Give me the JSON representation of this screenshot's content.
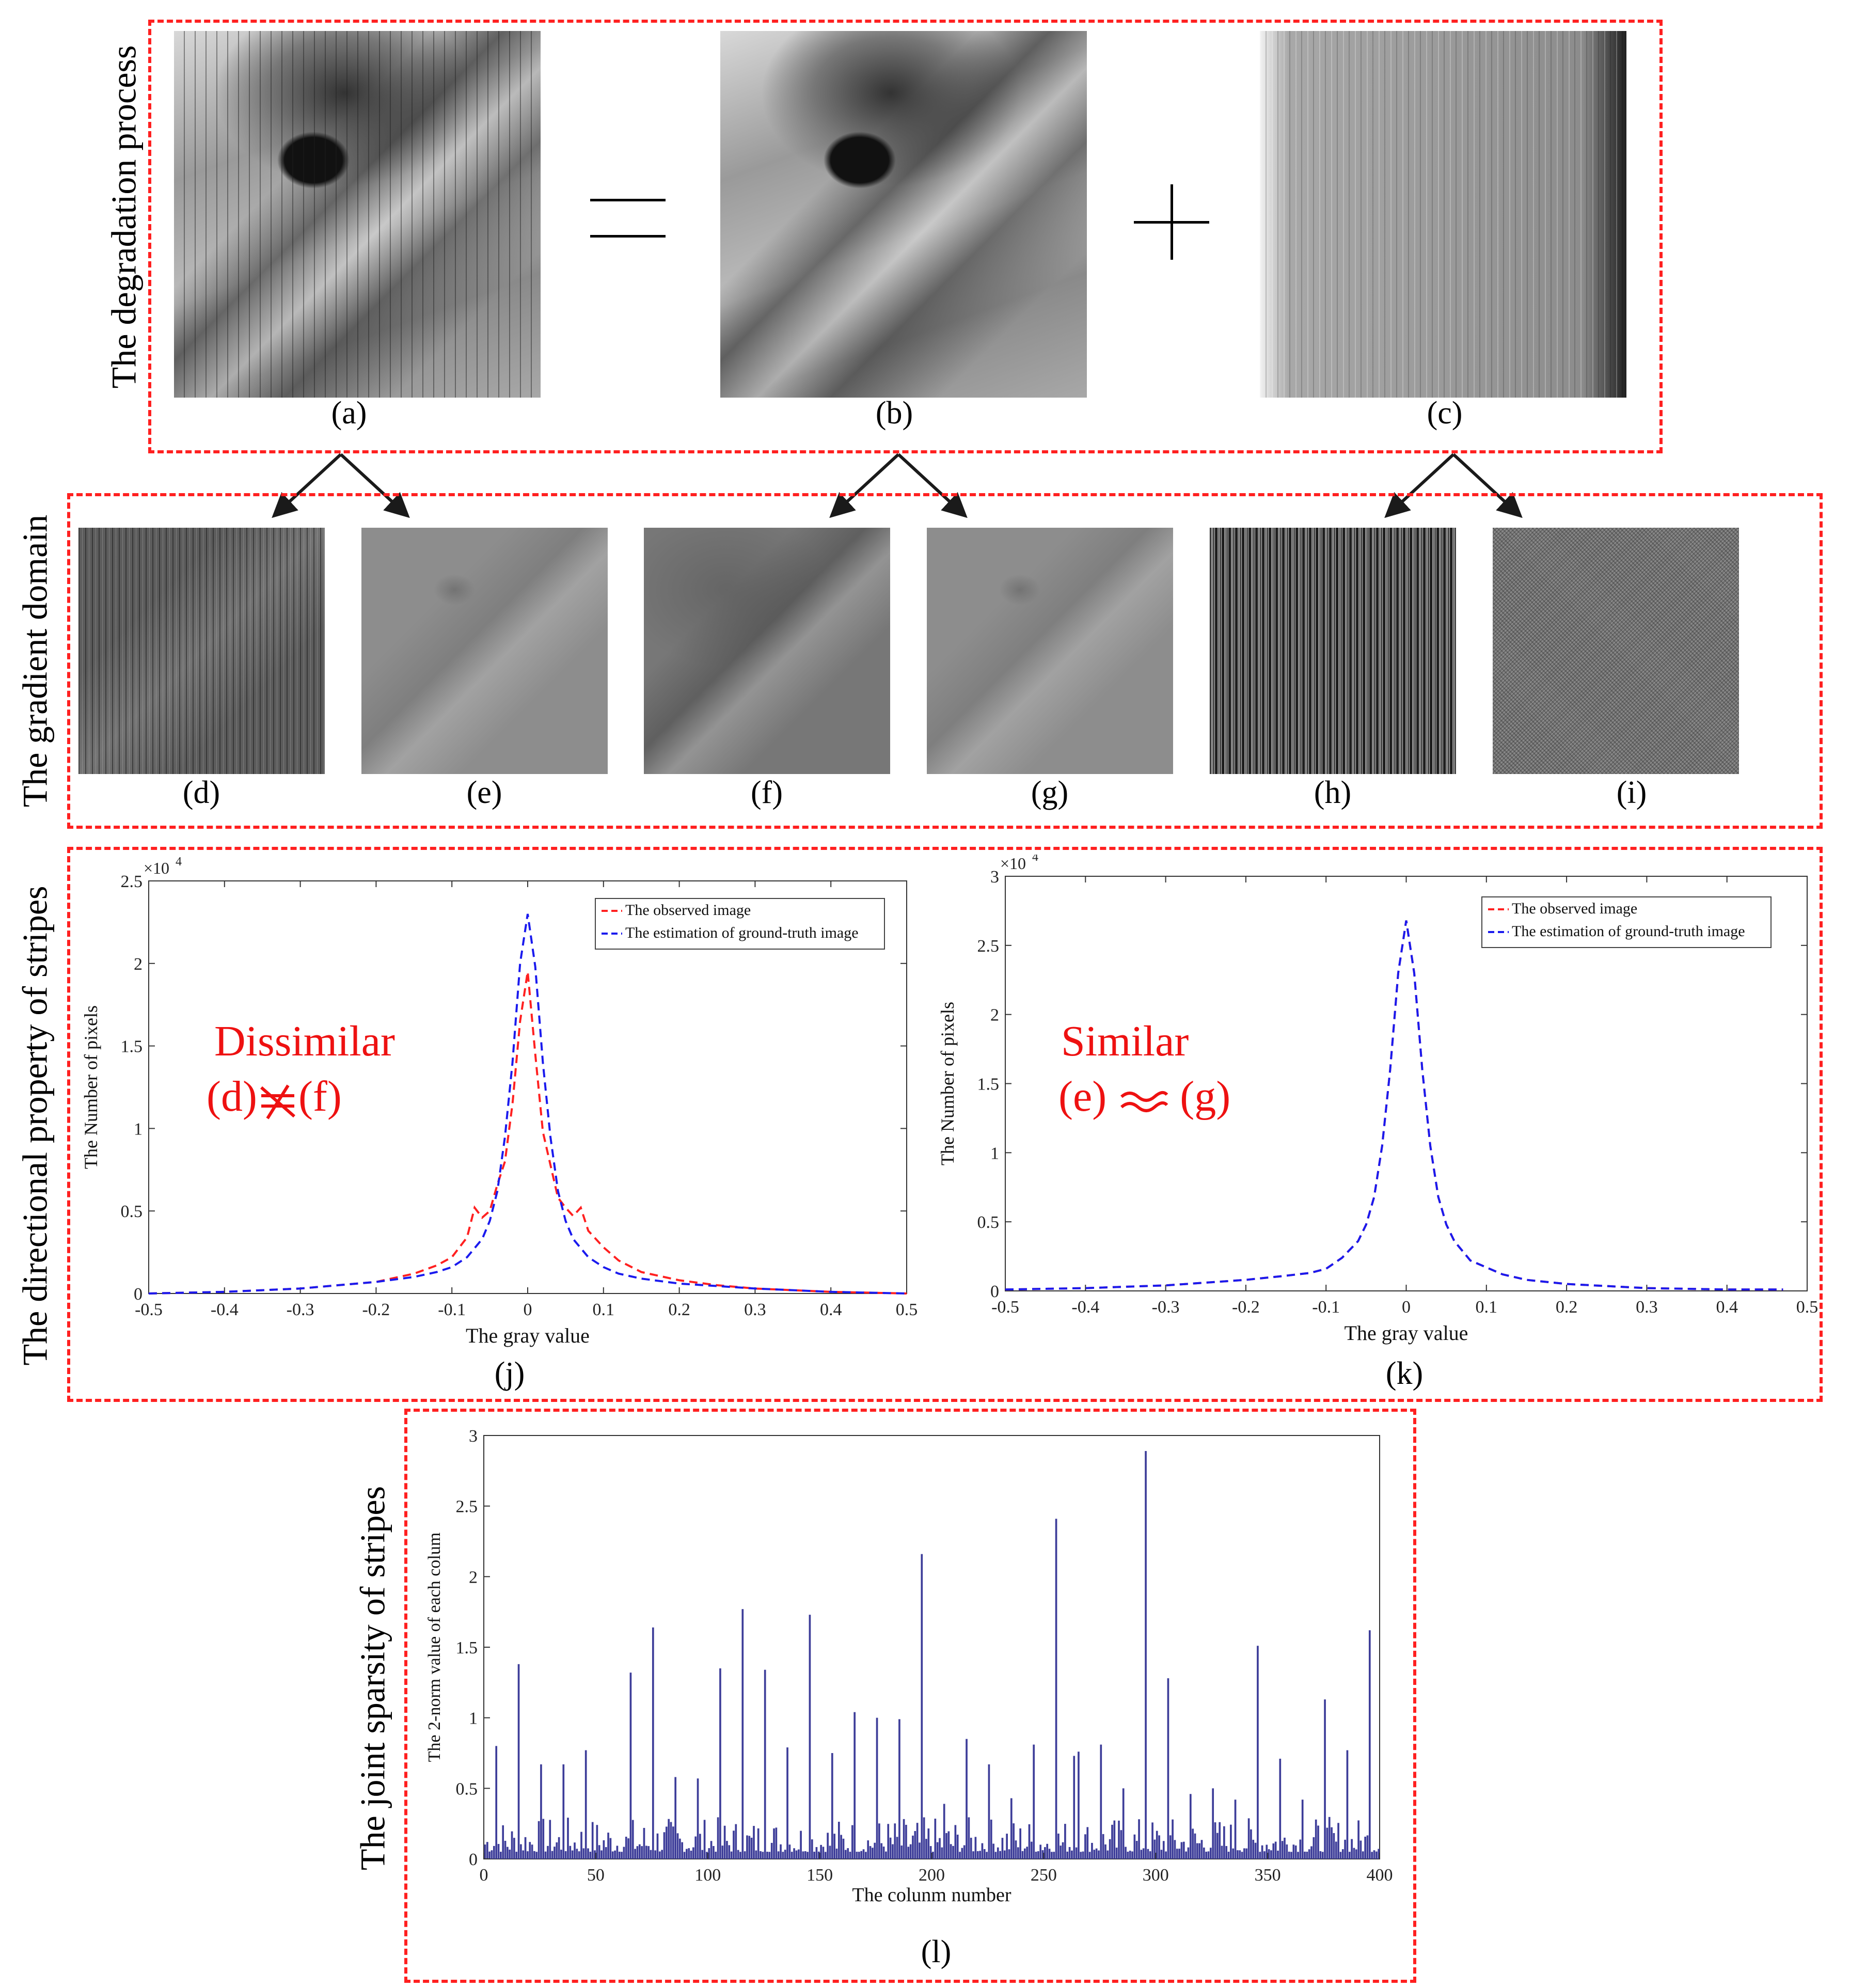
{
  "sections": {
    "degradation": "The degradation process",
    "gradient": "The gradient  domain",
    "directional": "The directional property of stripes",
    "sparsity": "The joint sparsity of stripes"
  },
  "captions": {
    "a": "(a)",
    "b": "(b)",
    "c": "(c)",
    "d": "(d)",
    "e": "(e)",
    "f": "(f)",
    "g": "(g)",
    "h": "(h)",
    "i": "(i)",
    "j": "(j)",
    "k": "(k)",
    "l": "(l)"
  },
  "annotations": {
    "j_word": "Dissimilar",
    "j_left": "(d)",
    "j_right": "(f)",
    "k_word": "Similar",
    "k_left": "(e)",
    "k_right": "(g)"
  },
  "colors": {
    "dash_border": "#ff2020",
    "observed": "#ff2020",
    "estimated": "#1a1aee",
    "bars": "#3d3d99",
    "annotation": "#ee1111"
  },
  "chart_data": [
    {
      "id": "j",
      "type": "line",
      "xlabel": "The gray value",
      "ylabel": "The Number of pixels",
      "y_exponent": "×10",
      "y_exponent_power": "4",
      "xlim": [
        -0.5,
        0.5
      ],
      "ylim": [
        0,
        2.5
      ],
      "xticks": [
        "-0.5",
        "-0.4",
        "-0.3",
        "-0.2",
        "-0.1",
        "0",
        "0.1",
        "0.2",
        "0.3",
        "0.4",
        "0.5"
      ],
      "yticks": [
        "0",
        "0.5",
        "1",
        "1.5",
        "2",
        "2.5"
      ],
      "legend_position": "top-right",
      "series": [
        {
          "name": "The observed image",
          "style": "dashed",
          "x": [
            -0.5,
            -0.4,
            -0.3,
            -0.25,
            -0.2,
            -0.15,
            -0.12,
            -0.1,
            -0.08,
            -0.07,
            -0.06,
            -0.05,
            -0.04,
            -0.03,
            -0.02,
            -0.01,
            0,
            0.01,
            0.02,
            0.03,
            0.04,
            0.05,
            0.06,
            0.07,
            0.08,
            0.1,
            0.12,
            0.15,
            0.2,
            0.25,
            0.3,
            0.4,
            0.5
          ],
          "y": [
            0,
            0.01,
            0.03,
            0.05,
            0.07,
            0.12,
            0.17,
            0.22,
            0.34,
            0.52,
            0.46,
            0.5,
            0.66,
            0.8,
            1.15,
            1.65,
            1.95,
            1.45,
            0.98,
            0.78,
            0.58,
            0.52,
            0.47,
            0.52,
            0.38,
            0.28,
            0.2,
            0.13,
            0.08,
            0.05,
            0.03,
            0.01,
            0
          ]
        },
        {
          "name": "The estimation of ground-truth image",
          "style": "dashed",
          "x": [
            -0.5,
            -0.4,
            -0.3,
            -0.2,
            -0.15,
            -0.12,
            -0.1,
            -0.08,
            -0.06,
            -0.05,
            -0.04,
            -0.03,
            -0.02,
            -0.01,
            0,
            0.01,
            0.02,
            0.03,
            0.04,
            0.05,
            0.06,
            0.08,
            0.1,
            0.12,
            0.15,
            0.2,
            0.3,
            0.4,
            0.5
          ],
          "y": [
            0,
            0.01,
            0.03,
            0.07,
            0.1,
            0.13,
            0.16,
            0.22,
            0.33,
            0.44,
            0.62,
            0.95,
            1.4,
            2.0,
            2.3,
            1.98,
            1.4,
            0.95,
            0.62,
            0.44,
            0.33,
            0.22,
            0.16,
            0.12,
            0.09,
            0.06,
            0.03,
            0.01,
            0
          ]
        }
      ]
    },
    {
      "id": "k",
      "type": "line",
      "xlabel": "The gray value",
      "ylabel": "The Number of pixels",
      "y_exponent": "×10",
      "y_exponent_power": "4",
      "xlim": [
        -0.5,
        0.5
      ],
      "ylim": [
        0,
        3
      ],
      "xticks": [
        "-0.5",
        "-0.4",
        "-0.3",
        "-0.2",
        "-0.1",
        "0",
        "0.1",
        "0.2",
        "0.3",
        "0.4",
        "0.5"
      ],
      "yticks": [
        "0",
        "0.5",
        "1",
        "1.5",
        "2",
        "2.5",
        "3"
      ],
      "legend_position": "top-right",
      "series": [
        {
          "name": "The observed image",
          "style": "dashed",
          "x": [
            -0.5,
            -0.4,
            -0.3,
            -0.2,
            -0.15,
            -0.12,
            -0.1,
            -0.08,
            -0.06,
            -0.05,
            -0.04,
            -0.03,
            -0.02,
            -0.01,
            0,
            0.01,
            0.02,
            0.03,
            0.04,
            0.05,
            0.06,
            0.08,
            0.1,
            0.12,
            0.15,
            0.2,
            0.3,
            0.4,
            0.47
          ],
          "y": [
            0.01,
            0.02,
            0.04,
            0.08,
            0.11,
            0.13,
            0.16,
            0.24,
            0.36,
            0.48,
            0.68,
            1.05,
            1.6,
            2.3,
            2.68,
            2.3,
            1.6,
            1.05,
            0.68,
            0.48,
            0.36,
            0.22,
            0.17,
            0.12,
            0.08,
            0.05,
            0.02,
            0.01,
            0.01
          ]
        },
        {
          "name": "The estimation of ground-truth image",
          "style": "dashed",
          "x": [
            -0.5,
            -0.4,
            -0.3,
            -0.2,
            -0.15,
            -0.12,
            -0.1,
            -0.08,
            -0.06,
            -0.05,
            -0.04,
            -0.03,
            -0.02,
            -0.01,
            0,
            0.01,
            0.02,
            0.03,
            0.04,
            0.05,
            0.06,
            0.08,
            0.1,
            0.12,
            0.15,
            0.2,
            0.3,
            0.4,
            0.47
          ],
          "y": [
            0.01,
            0.02,
            0.04,
            0.08,
            0.11,
            0.13,
            0.16,
            0.24,
            0.36,
            0.48,
            0.68,
            1.05,
            1.6,
            2.3,
            2.68,
            2.3,
            1.6,
            1.05,
            0.68,
            0.48,
            0.36,
            0.22,
            0.17,
            0.12,
            0.08,
            0.05,
            0.02,
            0.01,
            0.01
          ]
        }
      ]
    },
    {
      "id": "l",
      "type": "bar",
      "xlabel": "The colunm number",
      "ylabel": "The 2-norm value of each colum",
      "xlim": [
        0,
        400
      ],
      "ylim": [
        0,
        3
      ],
      "xticks": [
        "0",
        "50",
        "100",
        "150",
        "200",
        "250",
        "300",
        "350",
        "400"
      ],
      "yticks": [
        "0",
        "0.5",
        "1",
        "1.5",
        "2",
        "2.5",
        "3"
      ],
      "baseline": 0.05,
      "noise_max": 0.3,
      "peaks": [
        {
          "x": 6,
          "y": 0.8
        },
        {
          "x": 16,
          "y": 1.38
        },
        {
          "x": 26,
          "y": 0.67
        },
        {
          "x": 36,
          "y": 0.67
        },
        {
          "x": 46,
          "y": 0.77
        },
        {
          "x": 66,
          "y": 1.32
        },
        {
          "x": 76,
          "y": 1.64
        },
        {
          "x": 86,
          "y": 0.58
        },
        {
          "x": 96,
          "y": 0.57
        },
        {
          "x": 106,
          "y": 1.35
        },
        {
          "x": 116,
          "y": 1.77
        },
        {
          "x": 126,
          "y": 1.34
        },
        {
          "x": 136,
          "y": 0.79
        },
        {
          "x": 146,
          "y": 1.73
        },
        {
          "x": 156,
          "y": 0.75
        },
        {
          "x": 166,
          "y": 1.04
        },
        {
          "x": 176,
          "y": 1.0
        },
        {
          "x": 186,
          "y": 0.99
        },
        {
          "x": 196,
          "y": 2.16
        },
        {
          "x": 206,
          "y": 0.39
        },
        {
          "x": 216,
          "y": 0.85
        },
        {
          "x": 226,
          "y": 0.67
        },
        {
          "x": 236,
          "y": 0.43
        },
        {
          "x": 246,
          "y": 0.81
        },
        {
          "x": 256,
          "y": 2.41
        },
        {
          "x": 264,
          "y": 0.73
        },
        {
          "x": 266,
          "y": 0.76
        },
        {
          "x": 276,
          "y": 0.81
        },
        {
          "x": 286,
          "y": 0.5
        },
        {
          "x": 296,
          "y": 2.89
        },
        {
          "x": 306,
          "y": 1.28
        },
        {
          "x": 316,
          "y": 0.46
        },
        {
          "x": 326,
          "y": 0.5
        },
        {
          "x": 336,
          "y": 0.42
        },
        {
          "x": 346,
          "y": 1.51
        },
        {
          "x": 356,
          "y": 0.71
        },
        {
          "x": 366,
          "y": 0.42
        },
        {
          "x": 376,
          "y": 1.13
        },
        {
          "x": 386,
          "y": 0.77
        },
        {
          "x": 396,
          "y": 1.62
        }
      ]
    }
  ]
}
